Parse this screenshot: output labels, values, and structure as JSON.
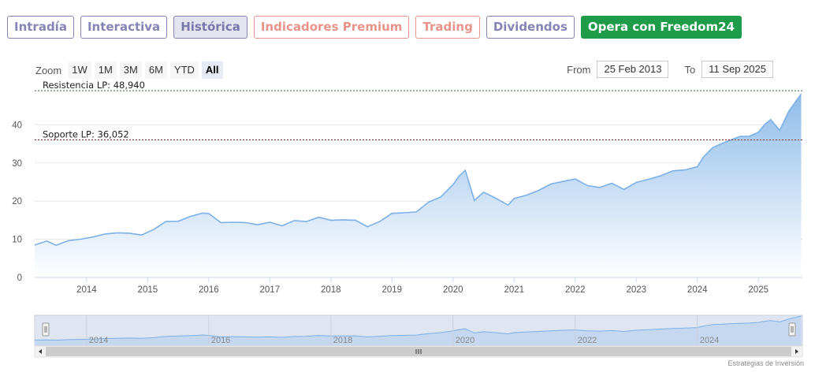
{
  "tabs": [
    {
      "label": "Intradía",
      "style": "purple"
    },
    {
      "label": "Interactiva",
      "style": "purple"
    },
    {
      "label": "Histórica",
      "style": "active"
    },
    {
      "label": "Indicadores Premium",
      "style": "salmon"
    },
    {
      "label": "Trading",
      "style": "salmon"
    },
    {
      "label": "Dividendos",
      "style": "purple"
    },
    {
      "label": "Opera con Freedom24",
      "style": "green"
    }
  ],
  "zoom": {
    "label": "Zoom",
    "buttons": [
      "1W",
      "1M",
      "3M",
      "6M",
      "YTD",
      "All"
    ],
    "selected": "All"
  },
  "range": {
    "from_label": "From",
    "from_value": "25 Feb 2013",
    "to_label": "To",
    "to_value": "11 Sep 2025"
  },
  "credit": "Estrategias de Inversión",
  "colors": {
    "line": "#7cb0e8",
    "area_top": "#8fbcea",
    "area_bottom": "#ffffff",
    "resistance": "#2d6b2d",
    "support": "#8b1a1a",
    "navigator_fill": "#c5d8f0"
  },
  "chart_data": {
    "type": "area",
    "ylim": [
      0,
      50
    ],
    "y_ticks": [
      0,
      10,
      20,
      30,
      40
    ],
    "x_ticks": [
      "2014",
      "2015",
      "2016",
      "2017",
      "2018",
      "2019",
      "2020",
      "2021",
      "2022",
      "2023",
      "2024",
      "2025"
    ],
    "navigator_ticks": [
      "2014",
      "2016",
      "2018",
      "2020",
      "2022",
      "2024"
    ],
    "x": [
      2013.15,
      2013.35,
      2013.5,
      2013.7,
      2013.9,
      2014.1,
      2014.3,
      2014.5,
      2014.7,
      2014.9,
      2015.1,
      2015.3,
      2015.5,
      2015.7,
      2015.9,
      2016.0,
      2016.2,
      2016.4,
      2016.6,
      2016.8,
      2017.0,
      2017.2,
      2017.4,
      2017.6,
      2017.8,
      2018.0,
      2018.2,
      2018.4,
      2018.6,
      2018.8,
      2019.0,
      2019.2,
      2019.4,
      2019.6,
      2019.8,
      2020.0,
      2020.1,
      2020.2,
      2020.35,
      2020.5,
      2020.7,
      2020.9,
      2021.0,
      2021.2,
      2021.4,
      2021.6,
      2021.8,
      2022.0,
      2022.2,
      2022.4,
      2022.6,
      2022.8,
      2023.0,
      2023.2,
      2023.4,
      2023.6,
      2023.8,
      2024.0,
      2024.1,
      2024.25,
      2024.4,
      2024.55,
      2024.7,
      2024.85,
      2025.0,
      2025.1,
      2025.2,
      2025.35,
      2025.5,
      2025.7
    ],
    "series": [
      {
        "values": [
          8.5,
          9.0,
          8.4,
          9.3,
          9.8,
          10.3,
          11.0,
          11.6,
          12.0,
          11.4,
          12.6,
          14.8,
          15.2,
          16.0,
          17.0,
          16.5,
          13.8,
          14.2,
          14.0,
          13.6,
          14.0,
          13.2,
          14.5,
          15.0,
          16.3,
          15.4,
          15.4,
          15.6,
          13.8,
          15.0,
          16.2,
          16.5,
          17.0,
          19.5,
          21.0,
          24.0,
          26.0,
          27.5,
          20.5,
          22.5,
          21.0,
          19.0,
          21.0,
          22.0,
          23.0,
          24.0,
          25.0,
          25.5,
          24.0,
          23.5,
          24.5,
          23.0,
          25.0,
          26.0,
          27.0,
          28.0,
          28.5,
          29.5,
          32.0,
          34.5,
          35.0,
          36.0,
          36.5,
          37.0,
          38.0,
          40.0,
          41.0,
          39.0,
          44.0,
          48.5
        ]
      }
    ],
    "reference_lines": [
      {
        "label": "Resistencia LP: 48,940",
        "value": 48.94,
        "style": "dashed"
      },
      {
        "label": "Soporte LP: 36,052",
        "value": 36.052,
        "style": "dashed"
      }
    ]
  }
}
